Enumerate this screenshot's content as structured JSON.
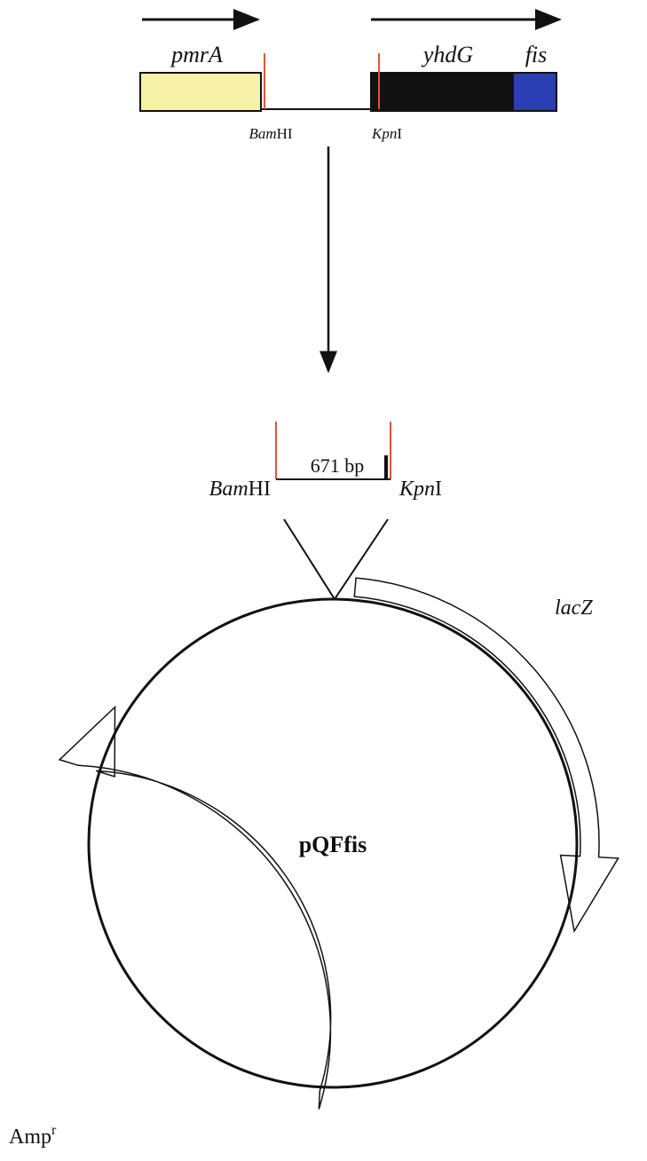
{
  "top_map": {
    "genes": [
      "pmrA",
      "yhdG",
      "fis"
    ],
    "site_left": [
      "Bam",
      "HI"
    ],
    "site_right": [
      "Kpn",
      "I"
    ]
  },
  "fragment": {
    "size": "671 bp",
    "site_left": [
      "Bam",
      "HI"
    ],
    "site_right": [
      "Kpn",
      "I"
    ]
  },
  "plasmid": {
    "name": "pQFfis",
    "lacz": "lacZ",
    "amp": [
      "Amp",
      "r"
    ]
  }
}
